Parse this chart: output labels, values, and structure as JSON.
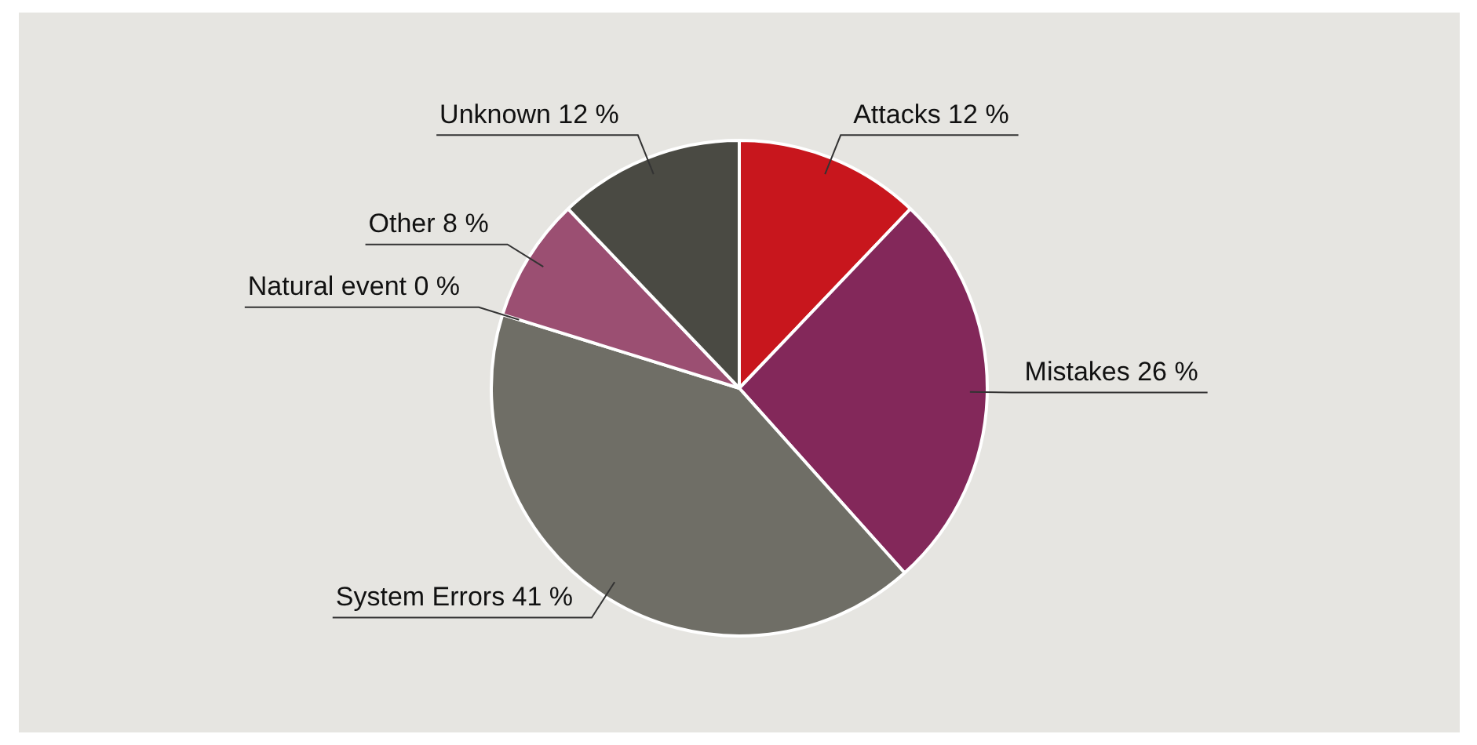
{
  "chart_data": {
    "type": "pie",
    "categories": [
      "Attacks",
      "Mistakes",
      "System Errors",
      "Natural event",
      "Other",
      "Unknown"
    ],
    "values": [
      12,
      26,
      41,
      0,
      8,
      12
    ],
    "value_labels": [
      "12 %",
      "26 %",
      "41 %",
      "0 %",
      "8 %",
      "12 %"
    ],
    "colors": [
      "#c8161d",
      "#83285a",
      "#6f6e66",
      "#8a8a80",
      "#9b4f72",
      "#4a4a43"
    ],
    "legend": false
  }
}
